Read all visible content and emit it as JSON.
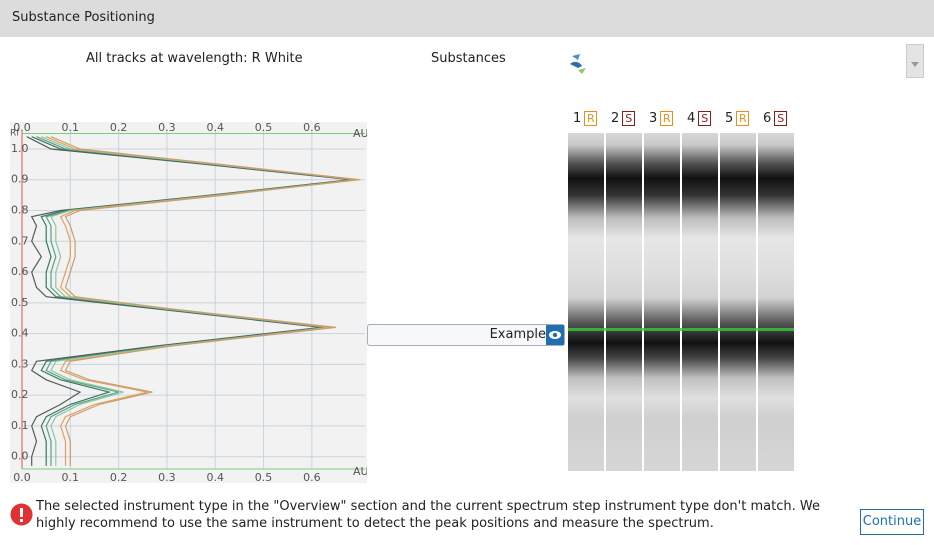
{
  "header": {
    "title": "Substance Positioning"
  },
  "toolbar": {
    "wavelength_label": "All tracks at wavelength: R White",
    "substances_label": "Substances"
  },
  "chart_data": {
    "type": "line",
    "x_axis_label": "AU",
    "y_axis_label": "Rf",
    "xlim": [
      0,
      0.71
    ],
    "ylim": [
      -0.04,
      1.06
    ],
    "xticks": [
      {
        "value": 0,
        "label": "0.0"
      },
      0.1,
      0.2,
      0.3,
      0.4,
      0.5,
      0.6
    ],
    "yticks": [
      {
        "value": 0,
        "label": "0.0"
      },
      0.1,
      0.2,
      0.3,
      0.4,
      0.5,
      0.6,
      0.7,
      0.8,
      0.9,
      {
        "value": 1,
        "label": "1.0"
      }
    ],
    "grid": true,
    "rf": [
      1.04,
      1.0,
      0.95,
      0.9,
      0.85,
      0.8,
      0.78,
      0.75,
      0.7,
      0.65,
      0.6,
      0.55,
      0.52,
      0.48,
      0.42,
      0.36,
      0.31,
      0.28,
      0.25,
      0.21,
      0.17,
      0.13,
      0.1,
      0.05,
      0.0,
      -0.03
    ],
    "series": [
      {
        "color": "#555b5b",
        "values": [
          0.01,
          0.06,
          0.38,
          0.68,
          0.39,
          0.08,
          0.02,
          0.03,
          0.02,
          0.04,
          0.02,
          0.03,
          0.05,
          0.28,
          0.62,
          0.28,
          0.03,
          0.02,
          0.05,
          0.12,
          0.08,
          0.03,
          0.02,
          0.03,
          0.02,
          0.02
        ]
      },
      {
        "color": "#3a7a5a",
        "values": [
          0.02,
          0.08,
          0.39,
          0.69,
          0.4,
          0.09,
          0.04,
          0.05,
          0.05,
          0.06,
          0.05,
          0.05,
          0.07,
          0.29,
          0.63,
          0.29,
          0.05,
          0.04,
          0.08,
          0.18,
          0.1,
          0.05,
          0.04,
          0.05,
          0.05,
          0.05
        ]
      },
      {
        "color": "#5aa08a",
        "values": [
          0.03,
          0.09,
          0.4,
          0.69,
          0.4,
          0.1,
          0.05,
          0.06,
          0.06,
          0.07,
          0.06,
          0.06,
          0.08,
          0.3,
          0.63,
          0.3,
          0.06,
          0.05,
          0.09,
          0.2,
          0.11,
          0.06,
          0.05,
          0.06,
          0.06,
          0.06
        ]
      },
      {
        "color": "#8cc8a0",
        "values": [
          0.04,
          0.1,
          0.4,
          0.7,
          0.41,
          0.1,
          0.06,
          0.07,
          0.07,
          0.08,
          0.07,
          0.07,
          0.09,
          0.3,
          0.64,
          0.3,
          0.07,
          0.06,
          0.1,
          0.21,
          0.12,
          0.07,
          0.06,
          0.07,
          0.07,
          0.07
        ]
      },
      {
        "color": "#e0a060",
        "values": [
          0.05,
          0.11,
          0.41,
          0.7,
          0.41,
          0.11,
          0.08,
          0.09,
          0.1,
          0.1,
          0.09,
          0.08,
          0.1,
          0.31,
          0.64,
          0.31,
          0.09,
          0.08,
          0.13,
          0.26,
          0.15,
          0.09,
          0.08,
          0.09,
          0.09,
          0.09
        ]
      },
      {
        "color": "#c8a070",
        "values": [
          0.06,
          0.12,
          0.41,
          0.69,
          0.42,
          0.12,
          0.09,
          0.1,
          0.11,
          0.11,
          0.1,
          0.09,
          0.11,
          0.31,
          0.65,
          0.31,
          0.1,
          0.09,
          0.14,
          0.27,
          0.16,
          0.1,
          0.09,
          0.1,
          0.1,
          0.1
        ]
      }
    ]
  },
  "substance": {
    "name": "Example"
  },
  "tracks": [
    {
      "number": 1,
      "type": "R",
      "color": "#e8901c"
    },
    {
      "number": 2,
      "type": "S",
      "color": "#8b1a1a"
    },
    {
      "number": 3,
      "type": "R",
      "color": "#e8901c"
    },
    {
      "number": 4,
      "type": "S",
      "color": "#8b1a1a"
    },
    {
      "number": 5,
      "type": "R",
      "color": "#e8901c"
    },
    {
      "number": 6,
      "type": "S",
      "color": "#8b1a1a"
    }
  ],
  "warning": {
    "message": "The selected instrument type in the \"Overview\" section and the current spectrum step instrument type don't match. We highly recommend to use the same instrument to detect the peak positions and measure the spectrum."
  },
  "buttons": {
    "continue": "Continue"
  }
}
